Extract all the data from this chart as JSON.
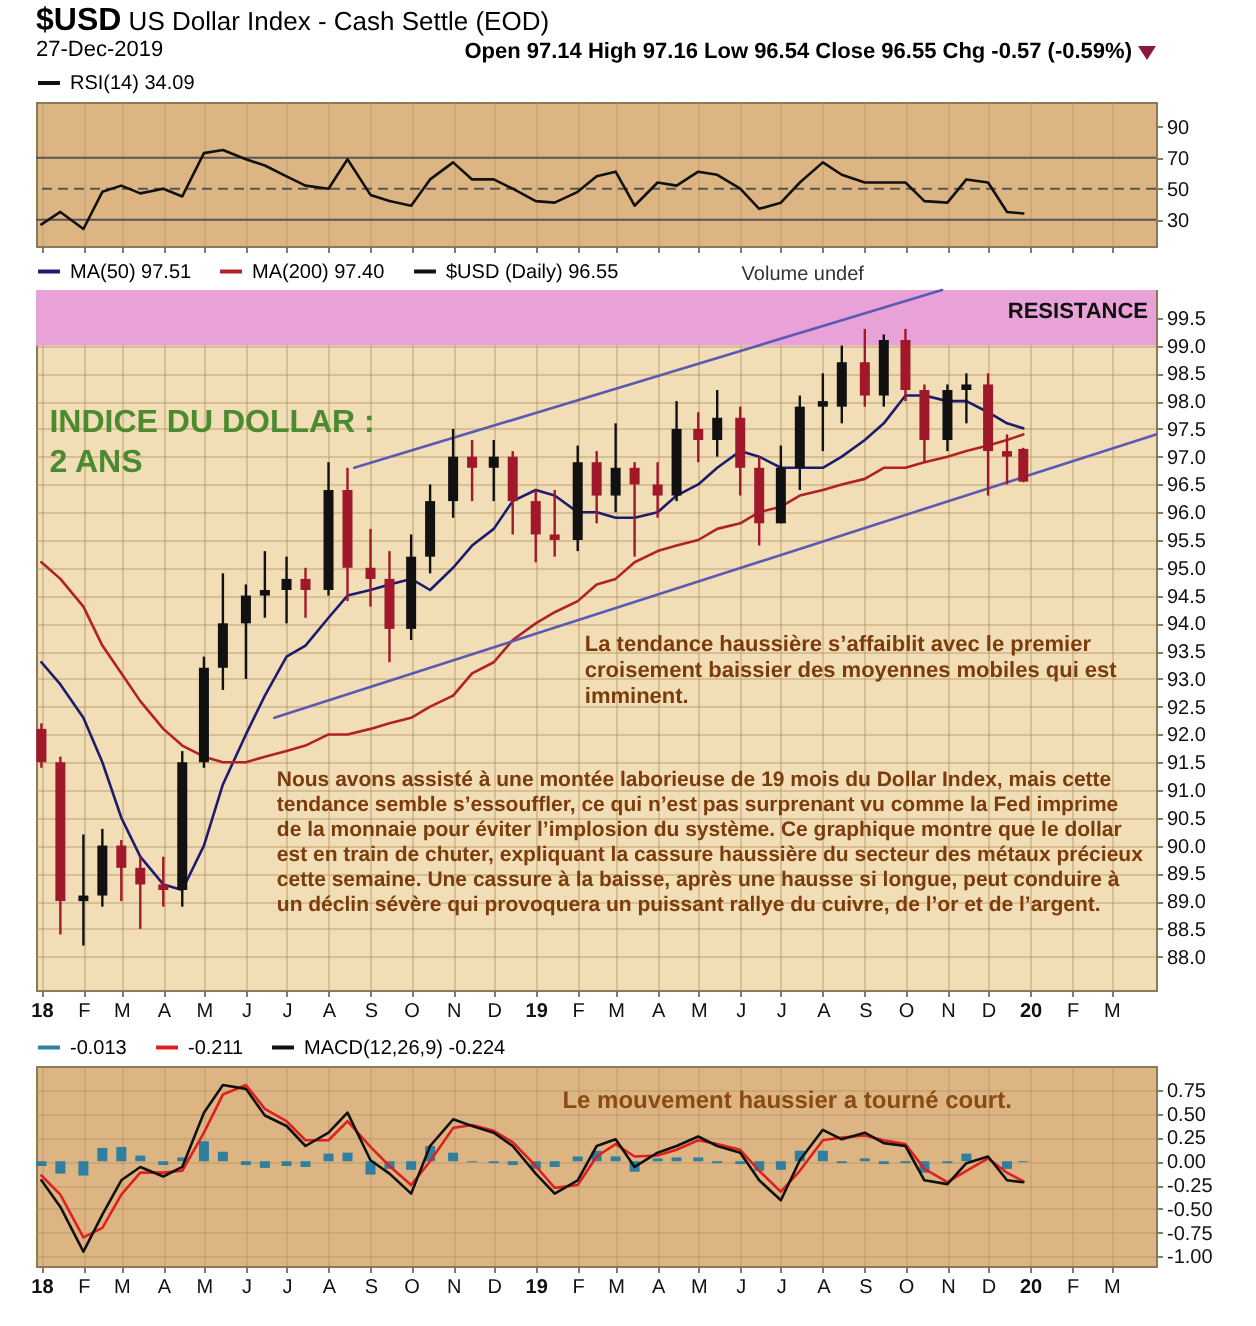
{
  "chart_data": [
    {
      "type": "line",
      "title": "$USD US Dollar Index - Cash Settle (EOD)",
      "subtitle": "27-Dec-2019",
      "annotations": [
        "Open 97.14 High 97.16 Low 96.54 Close 96.55 Chg -0.57 (-0.59%)"
      ],
      "x": [
        "2018-01-01",
        "2018-01-15",
        "2018-02-01",
        "2018-02-15",
        "2018-03-01",
        "2018-03-15",
        "2018-04-01",
        "2018-04-15",
        "2018-05-01",
        "2018-05-15",
        "2018-06-01",
        "2018-06-15",
        "2018-07-01",
        "2018-07-15",
        "2018-08-01",
        "2018-08-15",
        "2018-09-01",
        "2018-09-15",
        "2018-10-01",
        "2018-10-15",
        "2018-11-01",
        "2018-11-15",
        "2018-12-01",
        "2018-12-15",
        "2019-01-01",
        "2019-01-15",
        "2019-02-01",
        "2019-02-15",
        "2019-03-01",
        "2019-03-15",
        "2019-04-01",
        "2019-04-15",
        "2019-05-01",
        "2019-05-15",
        "2019-06-01",
        "2019-06-15",
        "2019-07-01",
        "2019-07-15",
        "2019-08-01",
        "2019-08-15",
        "2019-09-01",
        "2019-09-15",
        "2019-10-01",
        "2019-10-15",
        "2019-11-01",
        "2019-11-15",
        "2019-12-01",
        "2019-12-15",
        "2019-12-27"
      ],
      "series": [
        {
          "name": "RSI(14) 34.09",
          "color": "#111111",
          "values": [
            27,
            35,
            24,
            48,
            52,
            47,
            50,
            45,
            73,
            75,
            69,
            65,
            58,
            52,
            50,
            69,
            46,
            42,
            39,
            56,
            67,
            56,
            56,
            50,
            42,
            41,
            48,
            58,
            61,
            39,
            54,
            52,
            61,
            59,
            50,
            37,
            41,
            54,
            67,
            59,
            54,
            54,
            54,
            42,
            41,
            56,
            54,
            35,
            34
          ]
        }
      ],
      "xlim": [
        "2017-12-28",
        "2020-04-03"
      ],
      "xticks": [
        {
          "value": "2018-01-01",
          "label": null
        },
        {
          "value": "2018-02-01",
          "label": null
        },
        {
          "value": "2018-03-01",
          "label": null
        },
        {
          "value": "2018-04-01",
          "label": null
        },
        {
          "value": "2018-05-01",
          "label": null
        },
        {
          "value": "2018-06-01",
          "label": null
        },
        {
          "value": "2018-07-01",
          "label": null
        },
        {
          "value": "2018-08-01",
          "label": null
        },
        {
          "value": "2018-09-01",
          "label": null
        },
        {
          "value": "2018-10-01",
          "label": null
        },
        {
          "value": "2018-11-01",
          "label": null
        },
        {
          "value": "2018-12-01",
          "label": null
        },
        {
          "value": "2019-01-01",
          "label": null
        },
        {
          "value": "2019-02-01",
          "label": null
        },
        {
          "value": "2019-03-01",
          "label": null
        },
        {
          "value": "2019-04-01",
          "label": null
        },
        {
          "value": "2019-05-01",
          "label": null
        },
        {
          "value": "2019-06-01",
          "label": null
        },
        {
          "value": "2019-07-01",
          "label": null
        },
        {
          "value": "2019-08-01",
          "label": null
        },
        {
          "value": "2019-09-01",
          "label": null
        },
        {
          "value": "2019-10-01",
          "label": null
        },
        {
          "value": "2019-11-01",
          "label": null
        },
        {
          "value": "2019-12-01",
          "label": null
        },
        {
          "value": "2020-01-01",
          "label": null
        },
        {
          "value": "2020-02-01",
          "label": null
        },
        {
          "value": "2020-03-01",
          "label": null
        }
      ],
      "ylim": [
        13,
        106
      ],
      "yticks": [
        30,
        50,
        70,
        90
      ],
      "ref_lines": [
        {
          "axis": "y",
          "value": 70,
          "color": "#555555"
        },
        {
          "axis": "y",
          "value": 50,
          "color": "#555555",
          "line_style": "dashed"
        },
        {
          "axis": "y",
          "value": 30,
          "color": "#555555"
        }
      ],
      "grid": "x",
      "legend": "top left",
      "tick_labels": "y"
    },
    {
      "type": "candlestick",
      "annotations": [
        "Volume undef",
        "INDICE DU DOLLAR :\n2 ANS",
        "La tendance haussière s’affaiblit avec le premier croisement baissier des moyennes mobiles qui est imminent.",
        "Nous avons assisté à une montée laborieuse de 19 mois du Dollar Index, mais cette tendance semble s’essouffler, ce qui n’est pas surprenant vu comme la Fed imprime de la monnaie pour éviter l’implosion du système. Ce graphique montre que le dollar est en train de chuter, expliquant la cassure haussière du secteur des métaux précieux cette semaine. Une cassure à la baisse, après une hausse si longue, peut conduire à un déclin sévère qui provoquera un puissant rallye du cuivre, de l’or et de l’argent."
      ],
      "x": [
        "2018-01-01",
        "2018-01-15",
        "2018-02-01",
        "2018-02-15",
        "2018-03-01",
        "2018-03-15",
        "2018-04-01",
        "2018-04-15",
        "2018-05-01",
        "2018-05-15",
        "2018-06-01",
        "2018-06-15",
        "2018-07-01",
        "2018-07-15",
        "2018-08-01",
        "2018-08-15",
        "2018-09-01",
        "2018-09-15",
        "2018-10-01",
        "2018-10-15",
        "2018-11-01",
        "2018-11-15",
        "2018-12-01",
        "2018-12-15",
        "2019-01-01",
        "2019-01-15",
        "2019-02-01",
        "2019-02-15",
        "2019-03-01",
        "2019-03-15",
        "2019-04-01",
        "2019-04-15",
        "2019-05-01",
        "2019-05-15",
        "2019-06-01",
        "2019-06-15",
        "2019-07-01",
        "2019-07-15",
        "2019-08-01",
        "2019-08-15",
        "2019-09-01",
        "2019-09-15",
        "2019-10-01",
        "2019-10-15",
        "2019-11-01",
        "2019-11-15",
        "2019-12-01",
        "2019-12-15",
        "2019-12-27"
      ],
      "series": [
        {
          "type": "line",
          "name": "MA(50) 97.51",
          "color": "#1c1c6e",
          "values": [
            93.3,
            92.9,
            92.3,
            91.5,
            90.5,
            89.8,
            89.3,
            89.2,
            90.0,
            91.1,
            92.0,
            92.7,
            93.4,
            93.6,
            94.1,
            94.5,
            94.6,
            94.7,
            94.8,
            94.6,
            95.0,
            95.4,
            95.7,
            96.2,
            96.4,
            96.3,
            96.0,
            96.0,
            95.9,
            95.9,
            96.0,
            96.3,
            96.5,
            96.8,
            97.1,
            97.0,
            96.8,
            96.8,
            96.8,
            97.0,
            97.3,
            97.6,
            98.1,
            98.1,
            98.0,
            98.0,
            97.8,
            97.6,
            97.51
          ]
        },
        {
          "type": "line",
          "name": "MA(200) 97.40",
          "color": "#b22222",
          "values": [
            95.1,
            94.8,
            94.3,
            93.6,
            93.1,
            92.6,
            92.1,
            91.8,
            91.6,
            91.5,
            91.5,
            91.6,
            91.7,
            91.8,
            92.0,
            92.0,
            92.1,
            92.2,
            92.3,
            92.5,
            92.7,
            93.1,
            93.3,
            93.7,
            94.0,
            94.2,
            94.4,
            94.7,
            94.8,
            95.1,
            95.3,
            95.4,
            95.5,
            95.7,
            95.8,
            96.0,
            96.1,
            96.3,
            96.4,
            96.5,
            96.6,
            96.8,
            96.8,
            96.9,
            97.0,
            97.1,
            97.2,
            97.3,
            97.4
          ]
        },
        {
          "type": "line",
          "color": "#5a5ab4",
          "x": [
            "2018-08-20",
            "2019-10-28"
          ],
          "values": [
            96.8,
            100.0
          ]
        },
        {
          "type": "line",
          "color": "#5a5ab4",
          "x": [
            "2018-06-22",
            "2020-04-03"
          ],
          "values": [
            92.3,
            97.4
          ]
        },
        {
          "name": "$USD (Daily) 96.55",
          "color": "#111111",
          "ohlc": [
            [
              92.1,
              92.2,
              91.4,
              91.5
            ],
            [
              91.5,
              91.6,
              88.4,
              89.0
            ],
            [
              89.0,
              90.2,
              88.2,
              89.1
            ],
            [
              89.1,
              90.3,
              88.9,
              90.0
            ],
            [
              90.0,
              90.1,
              89.0,
              89.6
            ],
            [
              89.6,
              89.8,
              88.5,
              89.3
            ],
            [
              89.3,
              89.8,
              88.9,
              89.2
            ],
            [
              89.2,
              91.7,
              88.9,
              91.5
            ],
            [
              91.5,
              93.4,
              91.4,
              93.2
            ],
            [
              93.2,
              94.9,
              92.8,
              94.0
            ],
            [
              94.0,
              94.7,
              93.0,
              94.5
            ],
            [
              94.5,
              95.3,
              94.1,
              94.6
            ],
            [
              94.6,
              95.2,
              94.0,
              94.8
            ],
            [
              94.8,
              95.0,
              94.1,
              94.6
            ],
            [
              94.6,
              96.9,
              94.5,
              96.4
            ],
            [
              96.4,
              96.8,
              94.4,
              95.0
            ],
            [
              95.0,
              95.7,
              94.3,
              94.8
            ],
            [
              94.8,
              95.3,
              93.3,
              93.9
            ],
            [
              93.9,
              95.6,
              93.7,
              95.2
            ],
            [
              95.2,
              96.5,
              94.9,
              96.2
            ],
            [
              96.2,
              97.5,
              95.9,
              97.0
            ],
            [
              97.0,
              97.3,
              96.2,
              96.8
            ],
            [
              96.8,
              97.3,
              96.2,
              97.0
            ],
            [
              97.0,
              97.1,
              95.6,
              96.2
            ],
            [
              96.2,
              96.4,
              95.1,
              95.6
            ],
            [
              95.6,
              96.4,
              95.2,
              95.5
            ],
            [
              95.5,
              97.2,
              95.3,
              96.9
            ],
            [
              96.9,
              97.1,
              95.8,
              96.3
            ],
            [
              96.3,
              97.6,
              96.0,
              96.8
            ],
            [
              96.8,
              96.9,
              95.2,
              96.5
            ],
            [
              96.5,
              96.9,
              95.9,
              96.3
            ],
            [
              96.3,
              98.0,
              96.2,
              97.5
            ],
            [
              97.5,
              97.8,
              96.9,
              97.3
            ],
            [
              97.3,
              98.2,
              97.0,
              97.7
            ],
            [
              97.7,
              97.9,
              96.3,
              96.8
            ],
            [
              96.8,
              97.0,
              95.4,
              95.8
            ],
            [
              95.8,
              97.2,
              95.8,
              96.8
            ],
            [
              96.8,
              98.1,
              96.4,
              97.9
            ],
            [
              97.9,
              98.5,
              97.1,
              98.0
            ],
            [
              97.9,
              99.0,
              97.6,
              98.7
            ],
            [
              98.7,
              99.3,
              97.9,
              98.1
            ],
            [
              98.1,
              99.2,
              97.9,
              99.1
            ],
            [
              99.1,
              99.3,
              98.0,
              98.2
            ],
            [
              98.2,
              98.3,
              96.9,
              97.3
            ],
            [
              97.3,
              98.3,
              97.1,
              98.2
            ],
            [
              98.2,
              98.5,
              97.6,
              98.3
            ],
            [
              98.3,
              98.5,
              96.3,
              97.1
            ],
            [
              97.1,
              97.4,
              96.5,
              97.0
            ],
            [
              97.14,
              97.16,
              96.54,
              96.55
            ]
          ],
          "colors": [
            "#a0182a",
            "#a0182a",
            "#111111",
            "#111111",
            "#a0182a",
            "#a0182a",
            "#a0182a",
            "#111111",
            "#111111",
            "#111111",
            "#111111",
            "#111111",
            "#111111",
            "#a0182a",
            "#111111",
            "#a0182a",
            "#a0182a",
            "#a0182a",
            "#111111",
            "#111111",
            "#111111",
            "#a0182a",
            "#111111",
            "#a0182a",
            "#a0182a",
            "#a0182a",
            "#111111",
            "#a0182a",
            "#111111",
            "#a0182a",
            "#a0182a",
            "#111111",
            "#a0182a",
            "#111111",
            "#a0182a",
            "#a0182a",
            "#111111",
            "#111111",
            "#111111",
            "#111111",
            "#a0182a",
            "#111111",
            "#a0182a",
            "#a0182a",
            "#111111",
            "#111111",
            "#a0182a",
            "#a0182a",
            "#a0182a"
          ]
        }
      ],
      "xlim": [
        "2017-12-28",
        "2020-04-03"
      ],
      "xticks": [
        {
          "value": "2018-01-01",
          "label": "18"
        },
        {
          "value": "2018-02-01",
          "label": "F"
        },
        {
          "value": "2018-03-01",
          "label": "M"
        },
        {
          "value": "2018-04-01",
          "label": "A"
        },
        {
          "value": "2018-05-01",
          "label": "M"
        },
        {
          "value": "2018-06-01",
          "label": "J"
        },
        {
          "value": "2018-07-01",
          "label": "J"
        },
        {
          "value": "2018-08-01",
          "label": "A"
        },
        {
          "value": "2018-09-01",
          "label": "S"
        },
        {
          "value": "2018-10-01",
          "label": "O"
        },
        {
          "value": "2018-11-01",
          "label": "N"
        },
        {
          "value": "2018-12-01",
          "label": "D"
        },
        {
          "value": "2019-01-01",
          "label": "19"
        },
        {
          "value": "2019-02-01",
          "label": "F"
        },
        {
          "value": "2019-03-01",
          "label": "M"
        },
        {
          "value": "2019-04-01",
          "label": "A"
        },
        {
          "value": "2019-05-01",
          "label": "M"
        },
        {
          "value": "2019-06-01",
          "label": "J"
        },
        {
          "value": "2019-07-01",
          "label": "J"
        },
        {
          "value": "2019-08-01",
          "label": "A"
        },
        {
          "value": "2019-09-01",
          "label": "S"
        },
        {
          "value": "2019-10-01",
          "label": "O"
        },
        {
          "value": "2019-11-01",
          "label": "N"
        },
        {
          "value": "2019-12-01",
          "label": "D"
        },
        {
          "value": "2020-01-01",
          "label": "20"
        },
        {
          "value": "2020-02-01",
          "label": "F"
        },
        {
          "value": "2020-03-01",
          "label": "M"
        }
      ],
      "ylim": [
        87.4,
        100.0
      ],
      "yticks": [
        {
          "value": 88,
          "label": "88.0"
        },
        88.5,
        {
          "value": 89,
          "label": "89.0"
        },
        89.5,
        {
          "value": 90,
          "label": "90.0"
        },
        90.5,
        {
          "value": 91,
          "label": "91.0"
        },
        91.5,
        {
          "value": 92,
          "label": "92.0"
        },
        92.5,
        {
          "value": 93,
          "label": "93.0"
        },
        93.5,
        {
          "value": 94,
          "label": "94.0"
        },
        94.5,
        {
          "value": 95,
          "label": "95.0"
        },
        95.5,
        {
          "value": 96,
          "label": "96.0"
        },
        96.5,
        {
          "value": 97,
          "label": "97.0"
        },
        97.5,
        {
          "value": 98,
          "label": "98.0"
        },
        98.5,
        {
          "value": 99,
          "label": "99.0"
        },
        99.5
      ],
      "bands": [
        {
          "axis": "y",
          "from": 99.0,
          "to": 100.0,
          "label": "RESISTANCE",
          "color": "#e8a2d8"
        }
      ],
      "grid": true,
      "legend": "top left"
    },
    {
      "type": "line",
      "annotations": [
        "Le mouvement haussier a tourné court."
      ],
      "x": [
        "2018-01-01",
        "2018-01-15",
        "2018-02-01",
        "2018-02-15",
        "2018-03-01",
        "2018-03-15",
        "2018-04-01",
        "2018-04-15",
        "2018-05-01",
        "2018-05-15",
        "2018-06-01",
        "2018-06-15",
        "2018-07-01",
        "2018-07-15",
        "2018-08-01",
        "2018-08-15",
        "2018-09-01",
        "2018-09-15",
        "2018-10-01",
        "2018-10-15",
        "2018-11-01",
        "2018-11-15",
        "2018-12-01",
        "2018-12-15",
        "2019-01-01",
        "2019-01-15",
        "2019-02-01",
        "2019-02-15",
        "2019-03-01",
        "2019-03-15",
        "2019-04-01",
        "2019-04-15",
        "2019-05-01",
        "2019-05-15",
        "2019-06-01",
        "2019-06-15",
        "2019-07-01",
        "2019-07-15",
        "2019-08-01",
        "2019-08-15",
        "2019-09-01",
        "2019-09-15",
        "2019-10-01",
        "2019-10-15",
        "2019-11-01",
        "2019-11-15",
        "2019-12-01",
        "2019-12-15",
        "2019-12-27"
      ],
      "series": [
        {
          "type": "bar",
          "name": "-0.013",
          "color": "#2f7fa0",
          "values": [
            -0.05,
            -0.13,
            -0.15,
            0.14,
            0.15,
            0.06,
            -0.04,
            0.04,
            0.21,
            0.1,
            -0.04,
            -0.07,
            -0.05,
            -0.06,
            0.08,
            0.09,
            -0.14,
            -0.08,
            -0.09,
            0.16,
            0.09,
            -0.01,
            -0.02,
            -0.04,
            -0.08,
            -0.06,
            0.05,
            0.11,
            0.05,
            -0.11,
            0.03,
            0.04,
            0.04,
            -0.02,
            -0.03,
            -0.1,
            -0.09,
            0.11,
            0.11,
            -0.02,
            0.03,
            -0.03,
            -0.02,
            -0.12,
            -0.02,
            0.08,
            null,
            -0.08,
            -0.01
          ]
        },
        {
          "name": "-0.211",
          "color": "#e02020",
          "values": [
            -0.15,
            -0.35,
            -0.8,
            -0.7,
            -0.35,
            -0.12,
            -0.12,
            -0.1,
            0.3,
            0.7,
            0.8,
            0.55,
            0.42,
            0.22,
            0.22,
            0.42,
            0.15,
            -0.05,
            -0.25,
            0.0,
            0.35,
            0.38,
            0.32,
            0.2,
            -0.05,
            -0.28,
            -0.25,
            0.05,
            0.18,
            0.05,
            0.06,
            0.12,
            0.22,
            0.18,
            0.12,
            -0.1,
            -0.32,
            -0.1,
            0.22,
            0.25,
            0.27,
            0.22,
            0.18,
            -0.08,
            -0.22,
            -0.1,
            0.03,
            -0.12,
            -0.21
          ]
        },
        {
          "name": "MACD(12,26,9) -0.224",
          "color": "#111111",
          "values": [
            -0.2,
            -0.48,
            -0.95,
            -0.56,
            -0.2,
            -0.06,
            -0.16,
            -0.06,
            0.51,
            0.8,
            0.76,
            0.48,
            0.37,
            0.16,
            0.3,
            0.51,
            0.01,
            -0.13,
            -0.34,
            0.16,
            0.44,
            0.37,
            0.3,
            0.16,
            -0.13,
            -0.34,
            -0.2,
            0.16,
            0.23,
            -0.06,
            0.09,
            0.16,
            0.26,
            0.16,
            0.09,
            -0.2,
            -0.41,
            0.01,
            0.33,
            0.23,
            0.3,
            0.19,
            0.16,
            -0.2,
            -0.24,
            -0.02,
            0.05,
            -0.2,
            -0.22
          ]
        }
      ],
      "xlim": [
        "2017-12-28",
        "2020-04-03"
      ],
      "xticks": [
        {
          "value": "2018-01-01",
          "label": "18"
        },
        {
          "value": "2018-02-01",
          "label": "F"
        },
        {
          "value": "2018-03-01",
          "label": "M"
        },
        {
          "value": "2018-04-01",
          "label": "A"
        },
        {
          "value": "2018-05-01",
          "label": "M"
        },
        {
          "value": "2018-06-01",
          "label": "J"
        },
        {
          "value": "2018-07-01",
          "label": "J"
        },
        {
          "value": "2018-08-01",
          "label": "A"
        },
        {
          "value": "2018-09-01",
          "label": "S"
        },
        {
          "value": "2018-10-01",
          "label": "O"
        },
        {
          "value": "2018-11-01",
          "label": "N"
        },
        {
          "value": "2018-12-01",
          "label": "D"
        },
        {
          "value": "2019-01-01",
          "label": "19"
        },
        {
          "value": "2019-02-01",
          "label": "F"
        },
        {
          "value": "2019-03-01",
          "label": "M"
        },
        {
          "value": "2019-04-01",
          "label": "A"
        },
        {
          "value": "2019-05-01",
          "label": "M"
        },
        {
          "value": "2019-06-01",
          "label": "J"
        },
        {
          "value": "2019-07-01",
          "label": "J"
        },
        {
          "value": "2019-08-01",
          "label": "A"
        },
        {
          "value": "2019-09-01",
          "label": "S"
        },
        {
          "value": "2019-10-01",
          "label": "O"
        },
        {
          "value": "2019-11-01",
          "label": "N"
        },
        {
          "value": "2019-12-01",
          "label": "D"
        },
        {
          "value": "2020-01-01",
          "label": "20"
        },
        {
          "value": "2020-02-01",
          "label": "F"
        },
        {
          "value": "2020-03-01",
          "label": "M"
        }
      ],
      "ylim": [
        -1.1,
        1.0
      ],
      "yticks": [
        {
          "value": -1,
          "label": "-1.00"
        },
        -0.75,
        {
          "value": -0.5,
          "label": "-0.50"
        },
        -0.25,
        {
          "value": 0,
          "label": "0.00"
        },
        0.25,
        {
          "value": 0.5,
          "label": "0.50"
        },
        0.75
      ],
      "grid": true,
      "legend": "top left"
    }
  ]
}
